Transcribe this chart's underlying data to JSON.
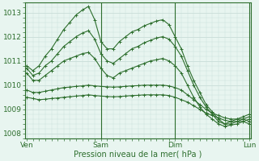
{
  "xlabel": "Pression niveau de la mer( hPa )",
  "bg_color": "#e8f5f0",
  "grid_color": "#c8ddd8",
  "line_color": "#2d6e2d",
  "markersize": 3,
  "linewidth": 0.8,
  "xtick_labels": [
    "Ven",
    "Sam",
    "Dim",
    "Lun"
  ],
  "xtick_positions": [
    0,
    12,
    24,
    36
  ],
  "ylim": [
    1007.8,
    1013.4
  ],
  "yticks": [
    1008,
    1009,
    1010,
    1011,
    1012,
    1013
  ],
  "series": [
    [
      1010.8,
      1010.6,
      1010.8,
      1011.2,
      1011.5,
      1011.9,
      1012.3,
      1012.6,
      1012.9,
      1013.1,
      1013.25,
      1012.7,
      1011.8,
      1011.5,
      1011.5,
      1011.8,
      1012.0,
      1012.2,
      1012.3,
      1012.45,
      1012.55,
      1012.65,
      1012.7,
      1012.5,
      1012.0,
      1011.5,
      1010.8,
      1010.2,
      1009.7,
      1009.2,
      1008.9,
      1008.6,
      1008.4,
      1008.5,
      1008.6,
      1008.7,
      1008.8
    ],
    [
      1010.7,
      1010.4,
      1010.5,
      1010.8,
      1011.0,
      1011.3,
      1011.6,
      1011.8,
      1012.0,
      1012.15,
      1012.25,
      1011.9,
      1011.3,
      1011.0,
      1010.9,
      1011.1,
      1011.3,
      1011.5,
      1011.6,
      1011.75,
      1011.85,
      1011.95,
      1012.0,
      1011.9,
      1011.6,
      1011.2,
      1010.6,
      1010.0,
      1009.5,
      1009.1,
      1008.8,
      1008.5,
      1008.4,
      1008.4,
      1008.5,
      1008.6,
      1008.7
    ],
    [
      1010.5,
      1010.2,
      1010.2,
      1010.4,
      1010.6,
      1010.8,
      1011.0,
      1011.1,
      1011.2,
      1011.3,
      1011.35,
      1011.1,
      1010.7,
      1010.4,
      1010.3,
      1010.5,
      1010.6,
      1010.7,
      1010.8,
      1010.9,
      1011.0,
      1011.05,
      1011.1,
      1011.0,
      1010.8,
      1010.5,
      1010.0,
      1009.5,
      1009.1,
      1008.8,
      1008.6,
      1008.4,
      1008.3,
      1008.35,
      1008.4,
      1008.5,
      1008.6
    ],
    [
      1009.8,
      1009.7,
      1009.7,
      1009.75,
      1009.8,
      1009.85,
      1009.9,
      1009.92,
      1009.95,
      1009.97,
      1010.0,
      1009.97,
      1009.95,
      1009.93,
      1009.92,
      1009.93,
      1009.95,
      1009.97,
      1009.98,
      1010.0,
      1010.0,
      1010.0,
      1010.0,
      1009.97,
      1009.9,
      1009.8,
      1009.6,
      1009.4,
      1009.2,
      1009.0,
      1008.85,
      1008.75,
      1008.65,
      1008.6,
      1008.6,
      1008.6,
      1008.5
    ],
    [
      1009.5,
      1009.45,
      1009.4,
      1009.42,
      1009.45,
      1009.47,
      1009.5,
      1009.52,
      1009.55,
      1009.57,
      1009.6,
      1009.57,
      1009.55,
      1009.53,
      1009.52,
      1009.53,
      1009.55,
      1009.57,
      1009.58,
      1009.6,
      1009.6,
      1009.6,
      1009.6,
      1009.57,
      1009.5,
      1009.4,
      1009.3,
      1009.15,
      1009.0,
      1008.85,
      1008.75,
      1008.65,
      1008.55,
      1008.5,
      1008.5,
      1008.5,
      1008.4
    ]
  ]
}
